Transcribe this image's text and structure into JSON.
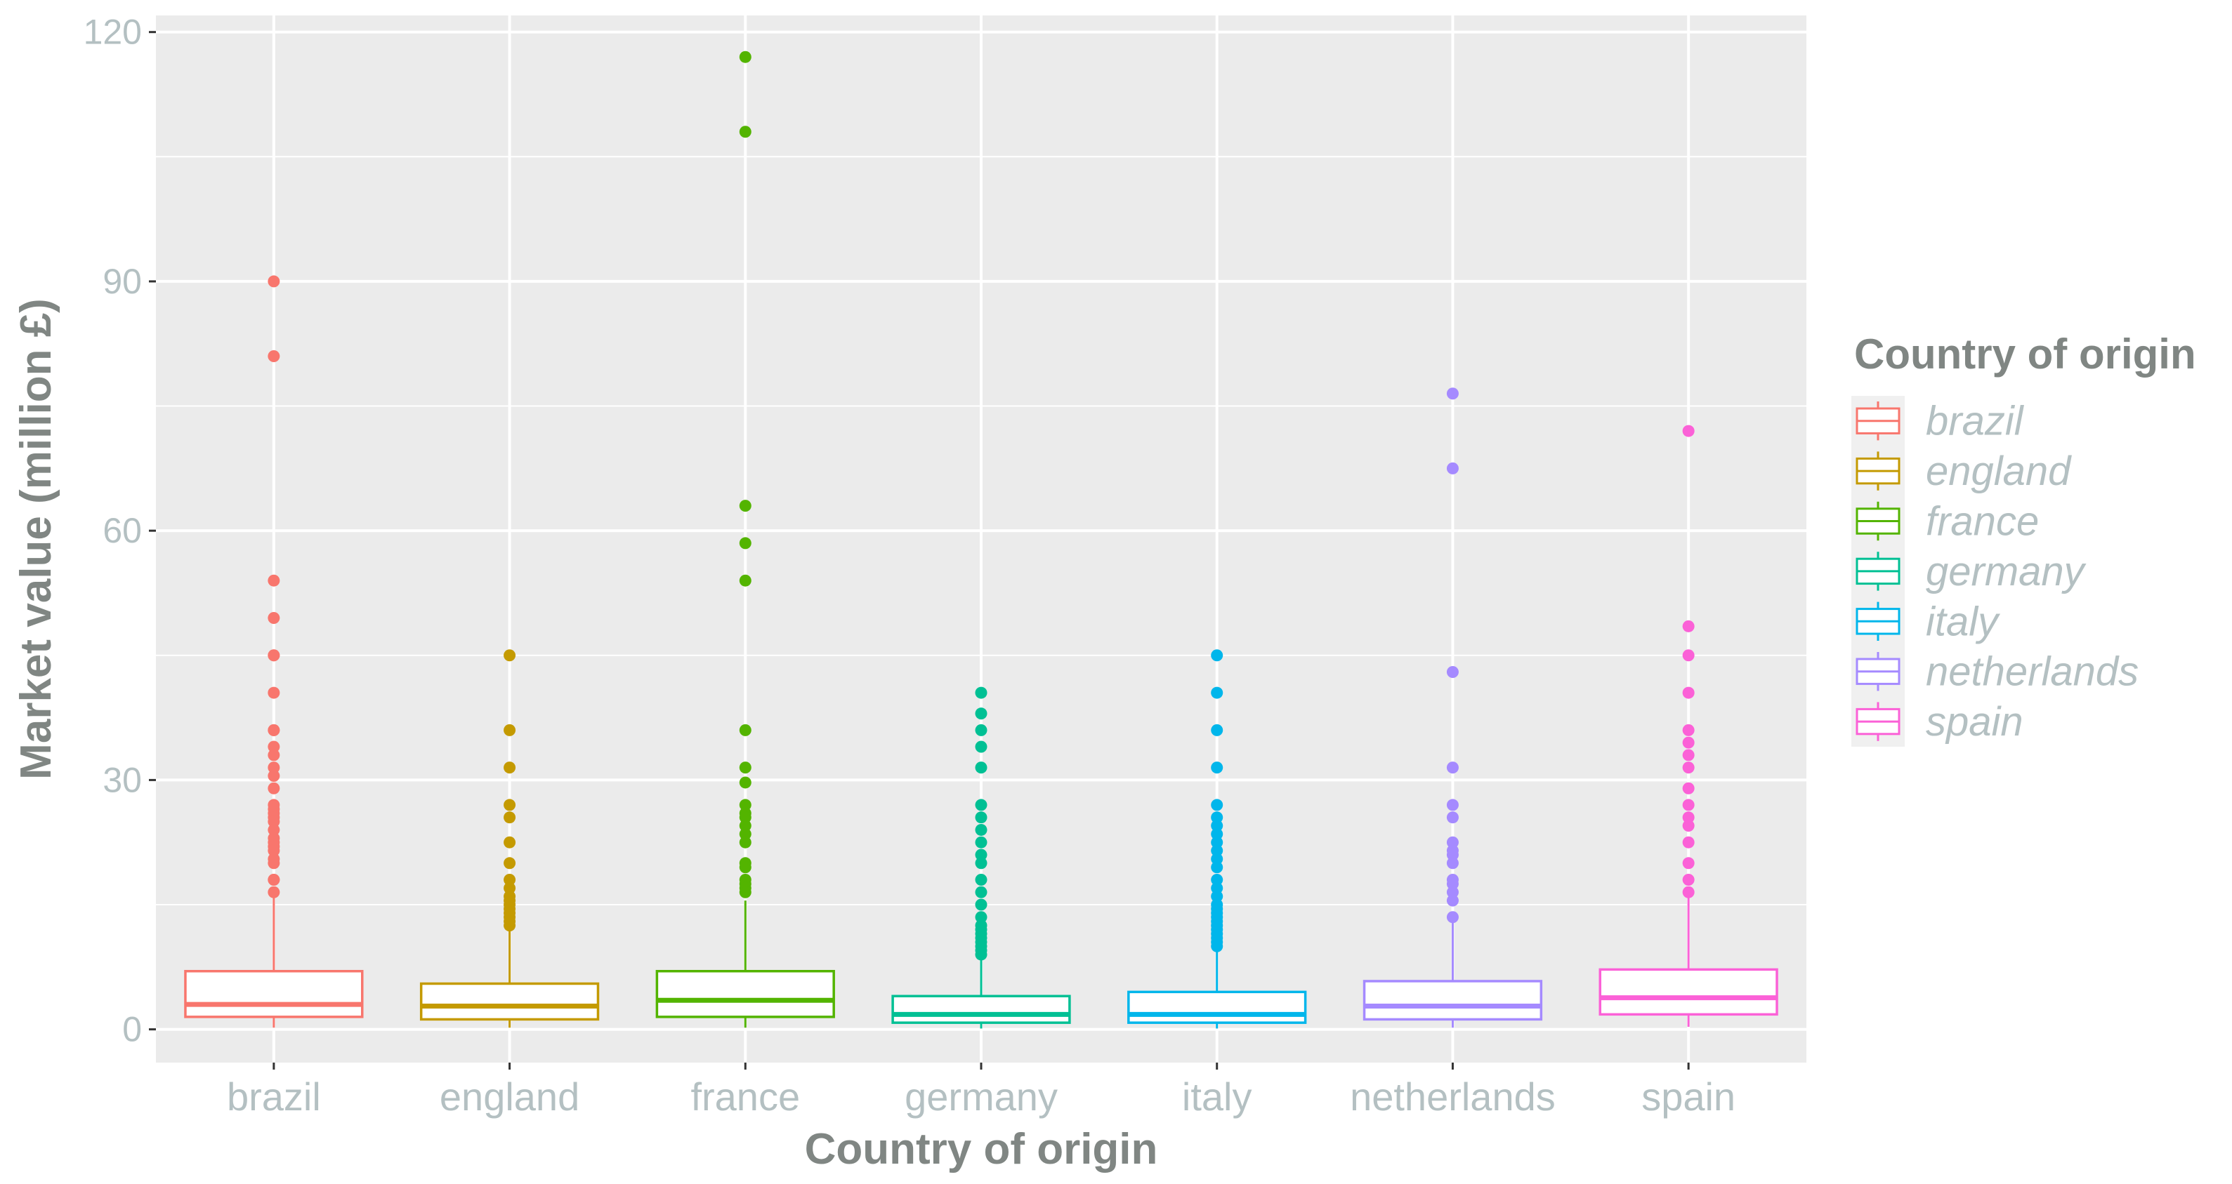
{
  "chart_data": {
    "type": "boxplot",
    "title": "",
    "xlabel": "Country of origin",
    "ylabel": "Market value (million £)",
    "ylim": [
      -4,
      122
    ],
    "yticks": [
      0,
      30,
      60,
      90,
      120
    ],
    "ytick_labels": [
      "0",
      "30",
      "60",
      "90",
      "120"
    ],
    "grid": true,
    "legend": {
      "title": "Country of origin",
      "position": "right"
    },
    "categories": [
      "brazil",
      "england",
      "france",
      "germany",
      "italy",
      "netherlands",
      "spain"
    ],
    "colors": [
      "#F8766D",
      "#C49A00",
      "#53B400",
      "#00C094",
      "#00B6EB",
      "#A58AFF",
      "#FB61D7"
    ],
    "series": [
      {
        "name": "brazil",
        "q1": 1.5,
        "median": 3.0,
        "q3": 7.0,
        "whisker_low": 0.2,
        "whisker_high": 16,
        "outliers": [
          90,
          81,
          54,
          49.5,
          45,
          45,
          40.5,
          36,
          36,
          34,
          33,
          31.5,
          30.5,
          29,
          27,
          26.5,
          26,
          25.5,
          25,
          24,
          23,
          22.5,
          22,
          21.5,
          20.5,
          20,
          18,
          18,
          16.5
        ]
      },
      {
        "name": "england",
        "q1": 1.2,
        "median": 2.8,
        "q3": 5.5,
        "whisker_low": 0.2,
        "whisker_high": 12,
        "outliers": [
          45,
          36,
          31.5,
          27,
          25.5,
          22.5,
          20,
          18,
          17,
          16,
          15.5,
          15,
          14.5,
          14,
          13.5,
          13,
          12.5
        ]
      },
      {
        "name": "france",
        "q1": 1.5,
        "median": 3.5,
        "q3": 7.0,
        "whisker_low": 0.2,
        "whisker_high": 15.5,
        "outliers": [
          117,
          108,
          63,
          58.5,
          54,
          36,
          31.5,
          29.7,
          27,
          26,
          25.5,
          24.5,
          23.5,
          22.5,
          20,
          19.5,
          18,
          17.5,
          17,
          16.5
        ]
      },
      {
        "name": "germany",
        "q1": 0.8,
        "median": 1.8,
        "q3": 4.0,
        "whisker_low": 0.1,
        "whisker_high": 8.8,
        "outliers": [
          40.5,
          38,
          36,
          34,
          31.5,
          27,
          25.5,
          24,
          22.5,
          21,
          20,
          18,
          16.5,
          15,
          13.5,
          12.5,
          12,
          11.5,
          11,
          10.5,
          10,
          9.5,
          9
        ]
      },
      {
        "name": "italy",
        "q1": 0.8,
        "median": 1.8,
        "q3": 4.5,
        "whisker_low": 0.1,
        "whisker_high": 10,
        "outliers": [
          45,
          40.5,
          36,
          31.5,
          27,
          25.5,
          24.5,
          23.5,
          22.5,
          21.5,
          20.5,
          19.5,
          18,
          17,
          16,
          15,
          14.5,
          14,
          13.5,
          13,
          12.5,
          12,
          11.5,
          11,
          10.5,
          10
        ]
      },
      {
        "name": "netherlands",
        "q1": 1.2,
        "median": 2.8,
        "q3": 5.8,
        "whisker_low": 0.2,
        "whisker_high": 13,
        "outliers": [
          76.5,
          67.5,
          43,
          31.5,
          27,
          25.5,
          22.5,
          21.5,
          21,
          20,
          18,
          17.5,
          16.5,
          15.5,
          13.5
        ]
      },
      {
        "name": "spain",
        "q1": 1.8,
        "median": 3.8,
        "q3": 7.2,
        "whisker_low": 0.3,
        "whisker_high": 16,
        "outliers": [
          72,
          48.5,
          45,
          40.5,
          36,
          34.5,
          33,
          31.5,
          29,
          27,
          25.5,
          24.5,
          22.5,
          20,
          18,
          16.5
        ]
      }
    ]
  }
}
